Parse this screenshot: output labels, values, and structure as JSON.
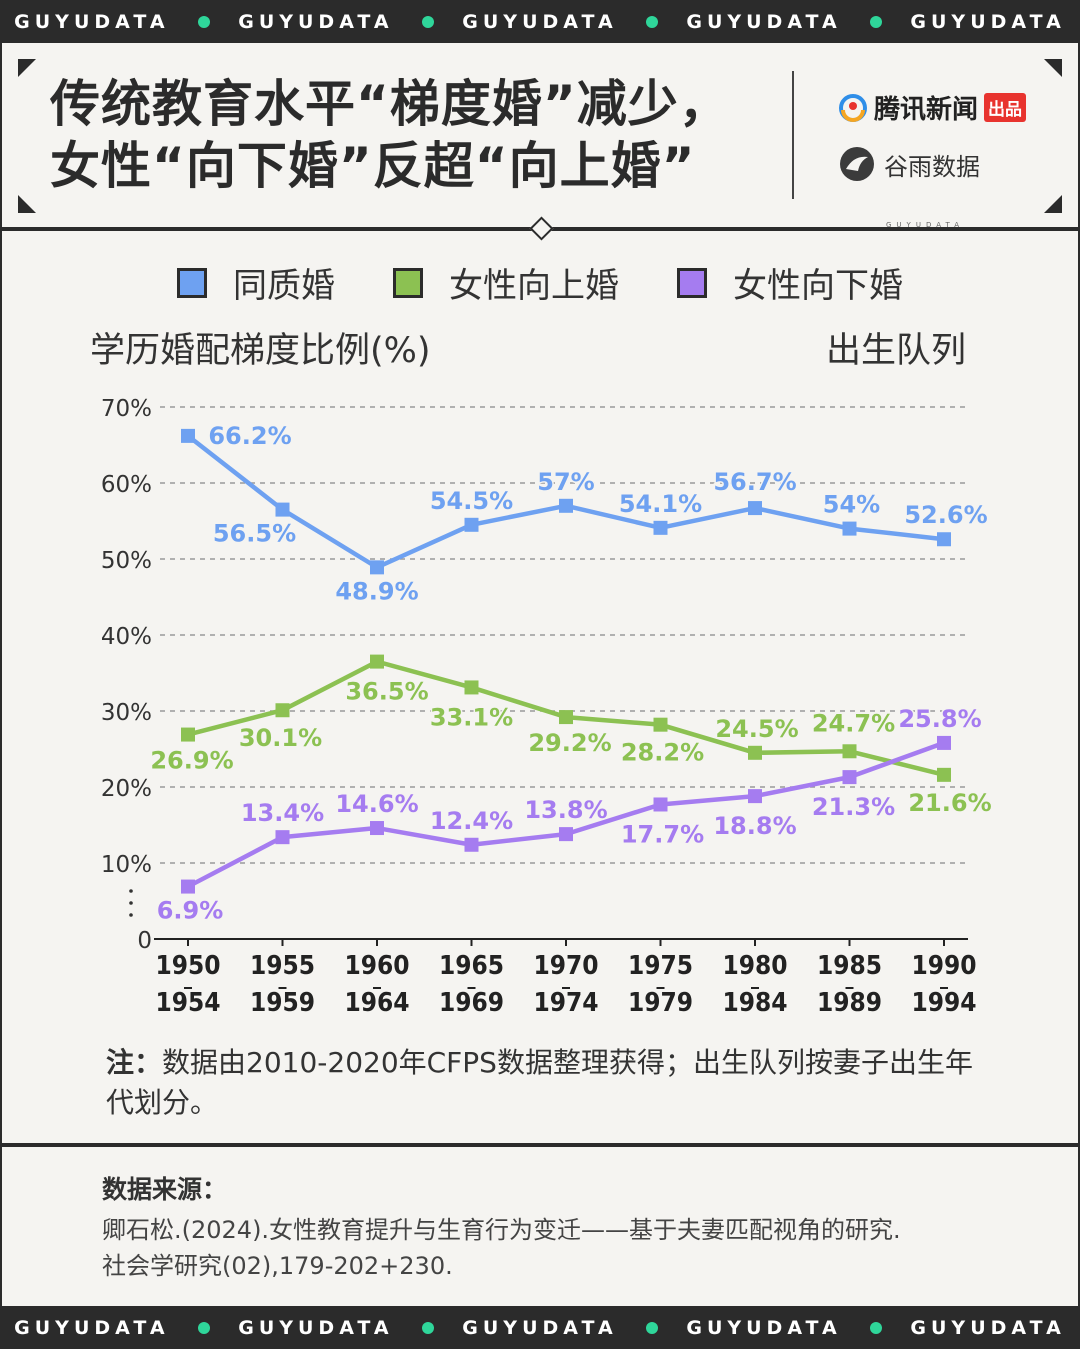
{
  "band_text": "GUYUDATA",
  "header": {
    "title_line1": "传统教育水平“梯度婚”减少，",
    "title_line2": "女性“向下婚”反超“向上婚”",
    "brand_tencent": "腾讯新闻",
    "brand_tencent_tag": "出品",
    "brand_guyu": "谷雨数据",
    "brand_guyu_sub": "GUYUDATA"
  },
  "chart_data": {
    "type": "line",
    "ylabel": "学历婚配梯度比例(%)",
    "xlabel": "出生队列",
    "ylim": [
      0,
      70
    ],
    "yticks": [
      "0",
      "10%",
      "20%",
      "30%",
      "40%",
      "50%",
      "60%",
      "70%"
    ],
    "categories": [
      [
        "1950",
        "1954"
      ],
      [
        "1955",
        "1959"
      ],
      [
        "1960",
        "1964"
      ],
      [
        "1965",
        "1969"
      ],
      [
        "1970",
        "1974"
      ],
      [
        "1975",
        "1979"
      ],
      [
        "1980",
        "1984"
      ],
      [
        "1985",
        "1989"
      ],
      [
        "1990",
        "1994"
      ]
    ],
    "series": [
      {
        "name": "同质婚",
        "color": "#6ea1f1",
        "values": [
          66.2,
          56.5,
          48.9,
          54.5,
          57,
          54.1,
          56.7,
          54,
          52.6
        ],
        "labels": [
          "66.2%",
          "56.5%",
          "48.9%",
          "54.5%",
          "57%",
          "54.1%",
          "56.7%",
          "54%",
          "52.6%"
        ]
      },
      {
        "name": "女性向上婚",
        "color": "#8cc152",
        "values": [
          26.9,
          30.1,
          36.5,
          33.1,
          29.2,
          28.2,
          24.5,
          24.7,
          21.6
        ],
        "labels": [
          "26.9%",
          "30.1%",
          "36.5%",
          "33.1%",
          "29.2%",
          "28.2%",
          "24.5%",
          "24.7%",
          "21.6%"
        ]
      },
      {
        "name": "女性向下婚",
        "color": "#a57cf0",
        "values": [
          6.9,
          13.4,
          14.6,
          12.4,
          13.8,
          17.7,
          18.8,
          21.3,
          25.8
        ],
        "labels": [
          "6.9%",
          "13.4%",
          "14.6%",
          "12.4%",
          "13.8%",
          "17.7%",
          "18.8%",
          "21.3%",
          "25.8%"
        ]
      }
    ],
    "grid": true,
    "legend_position": "top-center"
  },
  "note": {
    "label": "注：",
    "text": "数据由2010-2020年CFPS数据整理获得；出生队列按妻子出生年代划分。"
  },
  "source": {
    "label": "数据来源：",
    "line1": "卿石松.(2024).女性教育提升与生育行为变迁——基于夫妻匹配视角的研究.",
    "line2": "社会学研究(02),179-202+230."
  }
}
